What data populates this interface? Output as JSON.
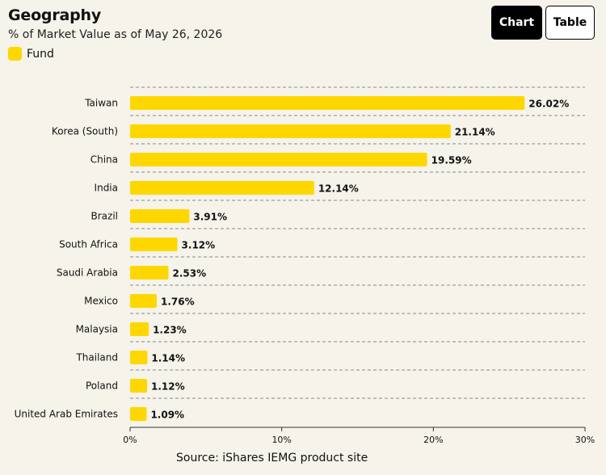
{
  "header": {
    "title": "Geography",
    "subtitle": "% of Market Value as of May 26, 2026"
  },
  "legend": {
    "label": "Fund",
    "color": "#FFD700"
  },
  "view_toggle": {
    "chart_label": "Chart",
    "table_label": "Table",
    "active": "Chart"
  },
  "footer": {
    "source": "Source: iShares IEMG product site"
  },
  "chart_data": {
    "type": "bar",
    "orientation": "horizontal",
    "title": "Geography",
    "subtitle": "% of Market Value as of May 26, 2026",
    "categories": [
      "Taiwan",
      "Korea (South)",
      "China",
      "India",
      "Brazil",
      "South Africa",
      "Saudi Arabia",
      "Mexico",
      "Malaysia",
      "Thailand",
      "Poland",
      "United Arab Emirates"
    ],
    "series": [
      {
        "name": "Fund",
        "color": "#FFD700",
        "values": [
          26.02,
          21.14,
          19.59,
          12.14,
          3.91,
          3.12,
          2.53,
          1.76,
          1.23,
          1.14,
          1.12,
          1.09
        ],
        "labels": [
          "26.02%",
          "21.14%",
          "19.59%",
          "12.14%",
          "3.91%",
          "3.12%",
          "2.53%",
          "1.76%",
          "1.23%",
          "1.14%",
          "1.12%",
          "1.09%"
        ]
      }
    ],
    "xlim": [
      0,
      30
    ],
    "xticks": [
      0,
      10,
      20,
      30
    ],
    "xtick_labels": [
      "0%",
      "10%",
      "20%",
      "30%"
    ],
    "grid": "dashed separators between rows",
    "legend_position": "top-left"
  }
}
